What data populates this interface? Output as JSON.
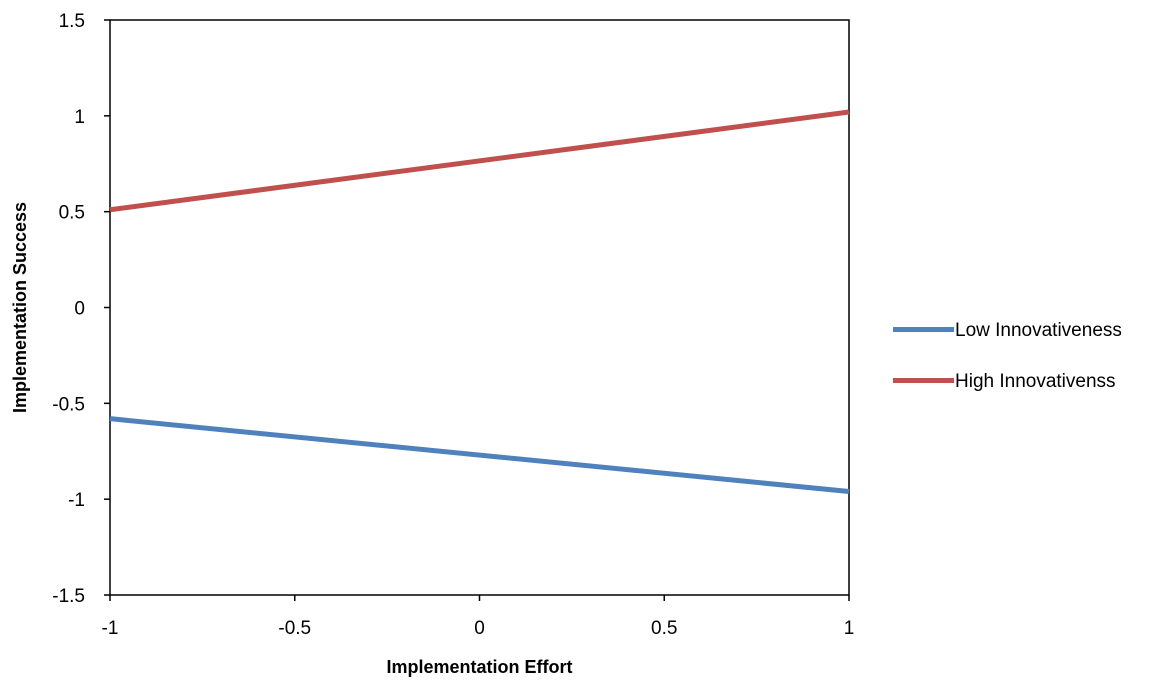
{
  "chart_data": {
    "type": "line",
    "title": "",
    "xlabel": "Implementation Effort",
    "ylabel": "Implementation Success",
    "x": [
      -1,
      1
    ],
    "x_ticks": [
      "-1",
      "-0.5",
      "0",
      "0.5",
      "1"
    ],
    "y_ticks": [
      "1.5",
      "1",
      "0.5",
      "0",
      "-0.5",
      "-1",
      "-1.5"
    ],
    "xlim": [
      -1,
      1
    ],
    "ylim": [
      -1.5,
      1.5
    ],
    "grid": false,
    "legend_position": "right",
    "series": [
      {
        "name": "Low Innovativeness",
        "values": [
          -0.58,
          -0.96
        ],
        "color": "#4F81BD"
      },
      {
        "name": "High Innovativenss",
        "values": [
          0.51,
          1.02
        ],
        "color": "#C0504D"
      }
    ]
  }
}
